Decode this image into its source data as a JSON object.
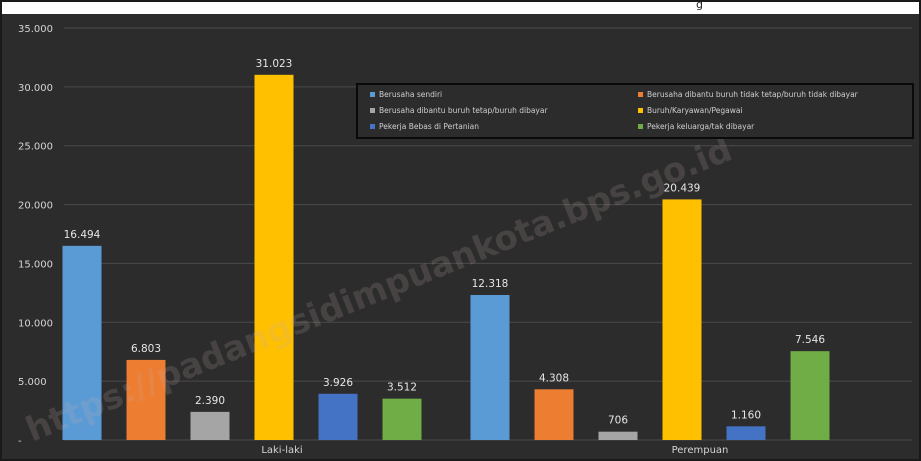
{
  "title_fragment": "g",
  "watermark": "https://padangsidimpuankota.bps.go.id",
  "chart_data": {
    "type": "bar",
    "categories": [
      "Laki-laki",
      "Perempuan"
    ],
    "series": [
      {
        "name": "Berusaha sendiri",
        "color": "#5b9bd5",
        "values": [
          16494,
          12318
        ],
        "labels": [
          "16.494",
          "12.318"
        ]
      },
      {
        "name": "Berusaha dibantu buruh tidak tetap/buruh tidak dibayar",
        "color": "#ed7d31",
        "values": [
          6803,
          4308
        ],
        "labels": [
          "6.803",
          "4.308"
        ]
      },
      {
        "name": "Berusaha dibantu buruh tetap/buruh dibayar",
        "color": "#a5a5a5",
        "values": [
          2390,
          706
        ],
        "labels": [
          "2.390",
          "706"
        ]
      },
      {
        "name": "Buruh/Karyawan/Pegawai",
        "color": "#ffc000",
        "values": [
          31023,
          20439
        ],
        "labels": [
          "31.023",
          "20.439"
        ]
      },
      {
        "name": "Pekerja Bebas di Pertanian",
        "color": "#4472c4",
        "values": [
          3926,
          1160
        ],
        "labels": [
          "3.926",
          "1.160"
        ]
      },
      {
        "name": "Pekerja keluarga/tak dibayar",
        "color": "#70ad47",
        "values": [
          3512,
          7546
        ],
        "labels": [
          "3.512",
          "7.546"
        ]
      }
    ],
    "yticks": [
      0,
      5000,
      10000,
      15000,
      20000,
      25000,
      30000,
      35000
    ],
    "ytick_labels": [
      "-",
      "5.000",
      "10.000",
      "15.000",
      "20.000",
      "25.000",
      "30.000",
      "35.000"
    ],
    "ylim": [
      0,
      35000
    ],
    "grid": true,
    "legend_position": "top-right"
  }
}
